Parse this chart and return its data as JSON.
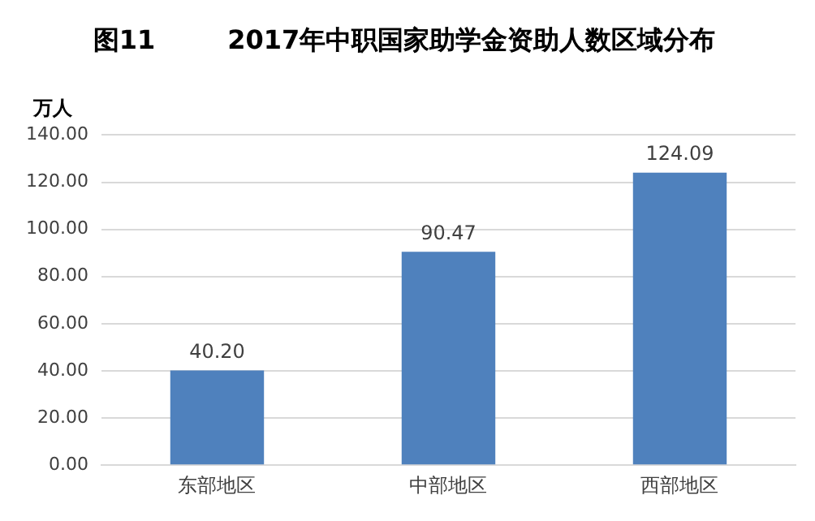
{
  "chart_data": {
    "type": "bar",
    "title": "图11        2017年中职国家助学金资助人数区域分布",
    "ylabel": "万人",
    "categories": [
      "东部地区",
      "中部地区",
      "西部地区"
    ],
    "values": [
      40.2,
      90.47,
      124.09
    ],
    "value_labels": [
      "40.20",
      "90.47",
      "124.09"
    ],
    "color": "#4f81bd",
    "ylim": [
      0,
      140
    ],
    "yticks": [
      {
        "value": 0,
        "label": "0.00"
      },
      {
        "value": 20,
        "label": "20.00"
      },
      {
        "value": 40,
        "label": "40.00"
      },
      {
        "value": 60,
        "label": "60.00"
      },
      {
        "value": 80,
        "label": "80.00"
      },
      {
        "value": 100,
        "label": "100.00"
      },
      {
        "value": 120,
        "label": "120.00"
      },
      {
        "value": 140,
        "label": "140.00"
      }
    ],
    "grid": "y",
    "legend": false
  }
}
